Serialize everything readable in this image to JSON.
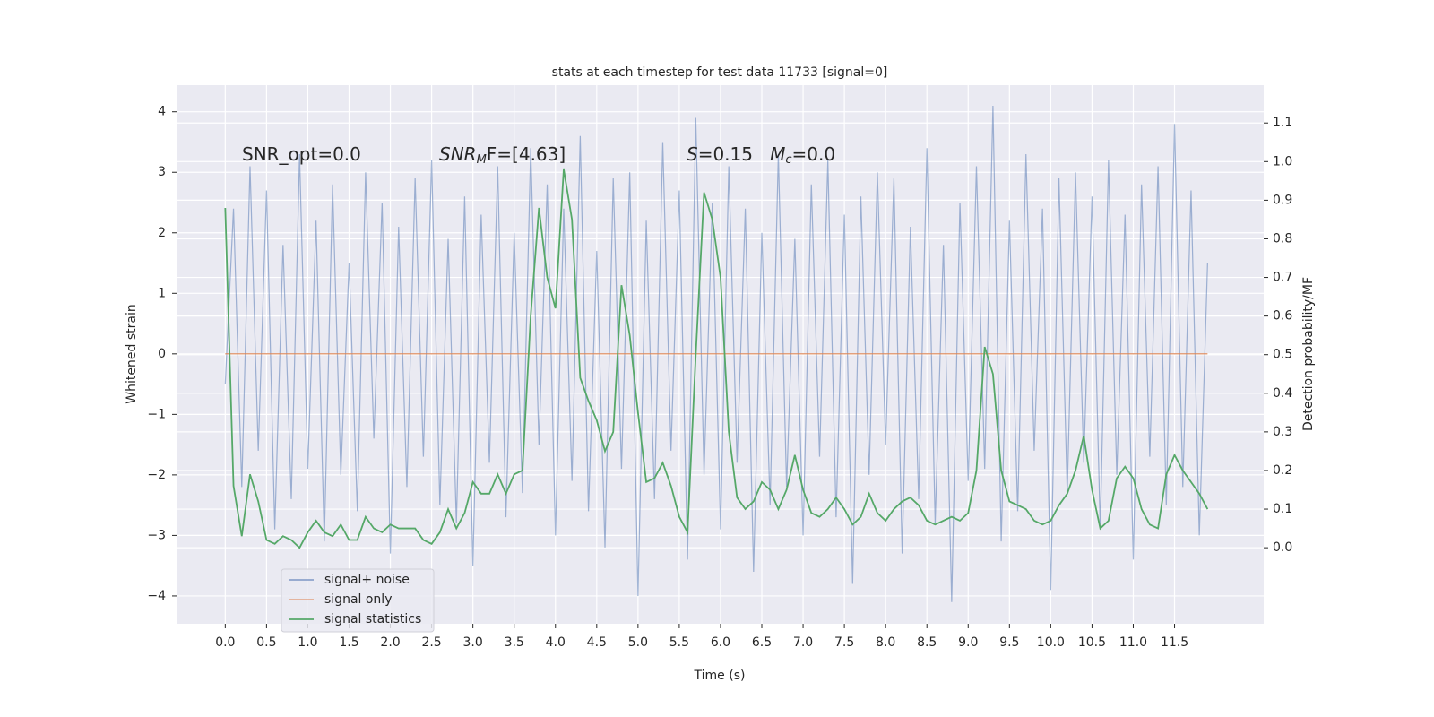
{
  "chart_data": {
    "type": "line",
    "title": "stats at each timestep for test data 11733 [signal=0]",
    "x_label": "Time (s)",
    "y_label": "Whitened strain",
    "y2_label": "Detection probability/MF",
    "x": [
      0.0,
      0.1,
      0.2,
      0.3,
      0.4,
      0.5,
      0.6,
      0.7,
      0.8,
      0.9,
      1.0,
      1.1,
      1.2,
      1.3,
      1.4,
      1.5,
      1.6,
      1.7,
      1.8,
      1.9,
      2.0,
      2.1,
      2.2,
      2.3,
      2.4,
      2.5,
      2.6,
      2.7,
      2.8,
      2.9,
      3.0,
      3.1,
      3.2,
      3.3,
      3.4,
      3.5,
      3.6,
      3.7,
      3.8,
      3.9,
      4.0,
      4.1,
      4.2,
      4.3,
      4.4,
      4.5,
      4.6,
      4.7,
      4.8,
      4.9,
      5.0,
      5.1,
      5.2,
      5.3,
      5.4,
      5.5,
      5.6,
      5.7,
      5.8,
      5.9,
      6.0,
      6.1,
      6.2,
      6.3,
      6.4,
      6.5,
      6.6,
      6.7,
      6.8,
      6.9,
      7.0,
      7.1,
      7.2,
      7.3,
      7.4,
      7.5,
      7.6,
      7.7,
      7.8,
      7.9,
      8.0,
      8.1,
      8.2,
      8.3,
      8.4,
      8.5,
      8.6,
      8.7,
      8.8,
      8.9,
      9.0,
      9.1,
      9.2,
      9.3,
      9.4,
      9.5,
      9.6,
      9.7,
      9.8,
      9.9,
      10.0,
      10.1,
      10.2,
      10.3,
      10.4,
      10.5,
      10.6,
      10.7,
      10.8,
      10.9,
      11.0,
      11.1,
      11.2,
      11.3,
      11.4,
      11.5,
      11.6,
      11.7,
      11.8,
      11.9
    ],
    "series": [
      {
        "name": "signal+ noise",
        "color": "#4c72b0",
        "axis": "y",
        "values": [
          -0.5,
          2.4,
          -2.2,
          3.1,
          -1.6,
          2.7,
          -2.9,
          1.8,
          -2.4,
          3.3,
          -1.9,
          2.2,
          -3.1,
          2.8,
          -2.0,
          1.5,
          -2.6,
          3.0,
          -1.4,
          2.5,
          -3.3,
          2.1,
          -2.2,
          2.9,
          -1.7,
          3.2,
          -2.5,
          1.9,
          -2.8,
          2.6,
          -3.5,
          2.3,
          -1.8,
          3.1,
          -2.7,
          2.0,
          -2.3,
          3.4,
          -1.5,
          2.8,
          -3.0,
          2.4,
          -2.1,
          3.6,
          -2.6,
          1.7,
          -3.2,
          2.9,
          -1.9,
          3.0,
          -4.0,
          2.2,
          -2.4,
          3.5,
          -1.6,
          2.7,
          -3.4,
          3.9,
          -2.0,
          2.5,
          -2.9,
          3.1,
          -1.8,
          2.4,
          -3.6,
          2.0,
          -2.5,
          3.3,
          -2.2,
          1.9,
          -3.0,
          2.8,
          -1.7,
          3.2,
          -2.7,
          2.3,
          -3.8,
          2.6,
          -2.0,
          3.0,
          -1.5,
          2.9,
          -3.3,
          2.1,
          -2.4,
          3.4,
          -2.8,
          1.8,
          -4.1,
          2.5,
          -2.1,
          3.1,
          -1.9,
          4.1,
          -3.1,
          2.2,
          -2.6,
          3.3,
          -1.6,
          2.4,
          -3.9,
          2.9,
          -2.3,
          3.0,
          -1.8,
          2.6,
          -2.9,
          3.2,
          -2.0,
          2.3,
          -3.4,
          2.8,
          -1.7,
          3.1,
          -2.5,
          3.8,
          -2.2,
          2.7,
          -3.0,
          1.5
        ]
      },
      {
        "name": "signal only",
        "color": "#dd8452",
        "axis": "y",
        "values": [
          0,
          0,
          0,
          0,
          0,
          0,
          0,
          0,
          0,
          0,
          0,
          0,
          0,
          0,
          0,
          0,
          0,
          0,
          0,
          0,
          0,
          0,
          0,
          0,
          0,
          0,
          0,
          0,
          0,
          0,
          0,
          0,
          0,
          0,
          0,
          0,
          0,
          0,
          0,
          0,
          0,
          0,
          0,
          0,
          0,
          0,
          0,
          0,
          0,
          0,
          0,
          0,
          0,
          0,
          0,
          0,
          0,
          0,
          0,
          0,
          0,
          0,
          0,
          0,
          0,
          0,
          0,
          0,
          0,
          0,
          0,
          0,
          0,
          0,
          0,
          0,
          0,
          0,
          0,
          0,
          0,
          0,
          0,
          0,
          0,
          0,
          0,
          0,
          0,
          0,
          0,
          0,
          0,
          0,
          0,
          0,
          0,
          0,
          0,
          0,
          0,
          0,
          0,
          0,
          0,
          0,
          0,
          0,
          0,
          0,
          0,
          0,
          0,
          0,
          0,
          0,
          0,
          0,
          0,
          0
        ]
      },
      {
        "name": "signal statistics",
        "color": "#55a868",
        "axis": "y2",
        "values": [
          0.88,
          0.16,
          0.03,
          0.19,
          0.12,
          0.02,
          0.01,
          0.03,
          0.02,
          0.0,
          0.04,
          0.07,
          0.04,
          0.03,
          0.06,
          0.02,
          0.02,
          0.08,
          0.05,
          0.04,
          0.06,
          0.05,
          0.05,
          0.05,
          0.02,
          0.01,
          0.04,
          0.1,
          0.05,
          0.09,
          0.17,
          0.14,
          0.14,
          0.19,
          0.14,
          0.19,
          0.2,
          0.6,
          0.88,
          0.7,
          0.62,
          0.98,
          0.85,
          0.44,
          0.38,
          0.33,
          0.25,
          0.3,
          0.68,
          0.55,
          0.35,
          0.17,
          0.18,
          0.22,
          0.16,
          0.08,
          0.04,
          0.5,
          0.92,
          0.85,
          0.7,
          0.3,
          0.13,
          0.1,
          0.12,
          0.17,
          0.15,
          0.1,
          0.15,
          0.24,
          0.15,
          0.09,
          0.08,
          0.1,
          0.13,
          0.1,
          0.06,
          0.08,
          0.14,
          0.09,
          0.07,
          0.1,
          0.12,
          0.13,
          0.11,
          0.07,
          0.06,
          0.07,
          0.08,
          0.07,
          0.09,
          0.2,
          0.52,
          0.45,
          0.2,
          0.12,
          0.11,
          0.1,
          0.07,
          0.06,
          0.07,
          0.11,
          0.14,
          0.2,
          0.29,
          0.15,
          0.05,
          0.07,
          0.18,
          0.21,
          0.18,
          0.1,
          0.06,
          0.05,
          0.19,
          0.24,
          0.2,
          0.17,
          0.14,
          0.1
        ]
      }
    ],
    "xlim": [
      -0.59,
      12.58
    ],
    "ylim": [
      -4.46,
      4.44
    ],
    "y2lim": [
      -0.197,
      1.198
    ],
    "xticks": [
      {
        "value": 0,
        "label": "0.0"
      },
      {
        "value": 0.5,
        "label": "0.5"
      },
      {
        "value": 1,
        "label": "1.0"
      },
      {
        "value": 1.5,
        "label": "1.5"
      },
      {
        "value": 2,
        "label": "2.0"
      },
      {
        "value": 2.5,
        "label": "2.5"
      },
      {
        "value": 3,
        "label": "3.0"
      },
      {
        "value": 3.5,
        "label": "3.5"
      },
      {
        "value": 4,
        "label": "4.0"
      },
      {
        "value": 4.5,
        "label": "4.5"
      },
      {
        "value": 5,
        "label": "5.0"
      },
      {
        "value": 5.5,
        "label": "5.5"
      },
      {
        "value": 6,
        "label": "6.0"
      },
      {
        "value": 6.5,
        "label": "6.5"
      },
      {
        "value": 7,
        "label": "7.0"
      },
      {
        "value": 7.5,
        "label": "7.5"
      },
      {
        "value": 8,
        "label": "8.0"
      },
      {
        "value": 8.5,
        "label": "8.5"
      },
      {
        "value": 9,
        "label": "9.0"
      },
      {
        "value": 9.5,
        "label": "9.5"
      },
      {
        "value": 10,
        "label": "10.0"
      },
      {
        "value": 10.5,
        "label": "10.5"
      },
      {
        "value": 11,
        "label": "11.0"
      },
      {
        "value": 11.5,
        "label": "11.5"
      }
    ],
    "yticks": [
      {
        "value": -4,
        "label": "−4"
      },
      {
        "value": -3,
        "label": "−3"
      },
      {
        "value": -2,
        "label": "−2"
      },
      {
        "value": -1,
        "label": "−1"
      },
      0,
      1,
      2,
      3,
      4
    ],
    "y2ticks": [
      {
        "value": 0,
        "label": "0.0"
      },
      {
        "value": 0.1,
        "label": "0.1"
      },
      {
        "value": 0.2,
        "label": "0.2"
      },
      {
        "value": 0.3,
        "label": "0.3"
      },
      {
        "value": 0.4,
        "label": "0.4"
      },
      {
        "value": 0.5,
        "label": "0.5"
      },
      {
        "value": 0.6,
        "label": "0.6"
      },
      {
        "value": 0.7,
        "label": "0.7"
      },
      {
        "value": 0.8,
        "label": "0.8"
      },
      {
        "value": 0.9,
        "label": "0.9"
      },
      {
        "value": 1,
        "label": "1.0"
      },
      {
        "value": 1.1,
        "label": "1.1"
      }
    ],
    "grid": true,
    "legend": "lower left",
    "annotations": [
      {
        "segments": [
          {
            "text": "SNR_opt=0.0",
            "style": "normal"
          }
        ]
      },
      {
        "segments": [
          {
            "text": "SNR",
            "style": "italic"
          },
          {
            "text": "M",
            "style": "sub"
          },
          {
            "text": "F=[4.63]",
            "style": "normal"
          }
        ]
      },
      {
        "segments": [
          {
            "text": "S",
            "style": "italic"
          },
          {
            "text": "=0.15   ",
            "style": "normal"
          },
          {
            "text": "M",
            "style": "italic"
          },
          {
            "text": "c",
            "style": "sub"
          },
          {
            "text": "=0.0",
            "style": "normal"
          }
        ]
      }
    ]
  }
}
